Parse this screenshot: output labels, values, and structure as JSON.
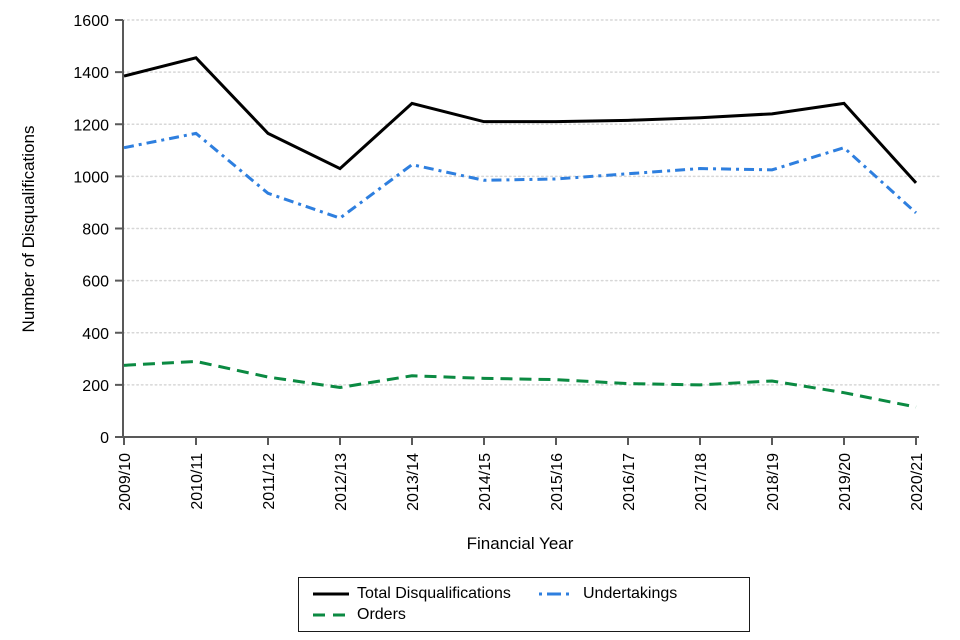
{
  "chart_data": {
    "type": "line",
    "title": "",
    "xlabel": "Financial Year",
    "ylabel": "Number of Disqualifications",
    "categories": [
      "2009/10",
      "2010/11",
      "2011/12",
      "2012/13",
      "2013/14",
      "2014/15",
      "2015/16",
      "2016/17",
      "2017/18",
      "2018/19",
      "2019/20",
      "2020/21"
    ],
    "series": [
      {
        "name": "Total Disqualifications",
        "color": "#000000",
        "style": "solid",
        "values": [
          1385,
          1455,
          1165,
          1030,
          1280,
          1210,
          1210,
          1215,
          1225,
          1240,
          1280,
          975
        ]
      },
      {
        "name": "Undertakings",
        "color": "#2E7FDF",
        "style": "dashdot",
        "values": [
          1110,
          1165,
          935,
          840,
          1045,
          985,
          990,
          1010,
          1030,
          1025,
          1110,
          860
        ]
      },
      {
        "name": "Orders",
        "color": "#0B8A42",
        "style": "dashed",
        "values": [
          275,
          290,
          230,
          190,
          235,
          225,
          220,
          205,
          200,
          215,
          170,
          115
        ]
      }
    ],
    "ylim": [
      0,
      1600
    ],
    "ytick_step": 200,
    "grid": "horizontal-dotted",
    "legend_position": "bottom",
    "axis_color": "#595959",
    "grid_color": "#d7d7d7"
  }
}
